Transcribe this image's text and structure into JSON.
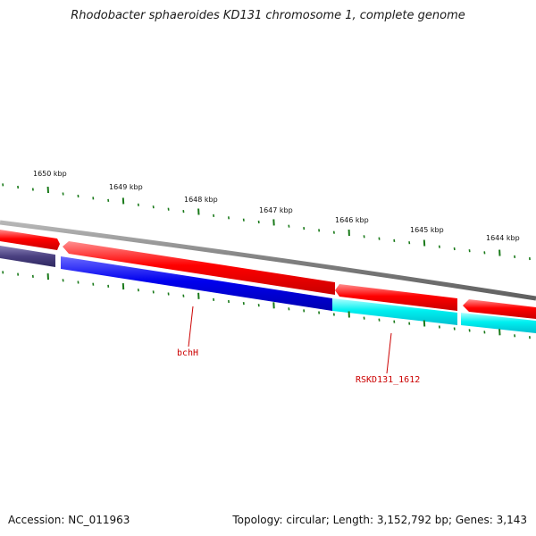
{
  "title": "Rhodobacter sphaeroides KD131 chromosome 1, complete genome",
  "ruler": {
    "labels": [
      "1650 kbp",
      "1649 kbp",
      "1648 kbp",
      "1647 kbp",
      "1646 kbp",
      "1645 kbp",
      "1644 kbp"
    ]
  },
  "genes": {
    "labeled": [
      {
        "name": "bchH"
      },
      {
        "name": "RSKD131_1612"
      }
    ]
  },
  "footer": {
    "accession": "Accession: NC_011963",
    "summary": "Topology: circular; Length: 3,152,792 bp; Genes: 3,143"
  },
  "colors": {
    "backbone": "#808080",
    "forward_cds": "#ff0000",
    "reverse_cds_blue": "#0000ee",
    "reverse_cds_cyan": "#00f0f0",
    "reverse_cds_faded": "#4a4080",
    "ticks": "#1a7a1a",
    "label": "#cc0000"
  }
}
